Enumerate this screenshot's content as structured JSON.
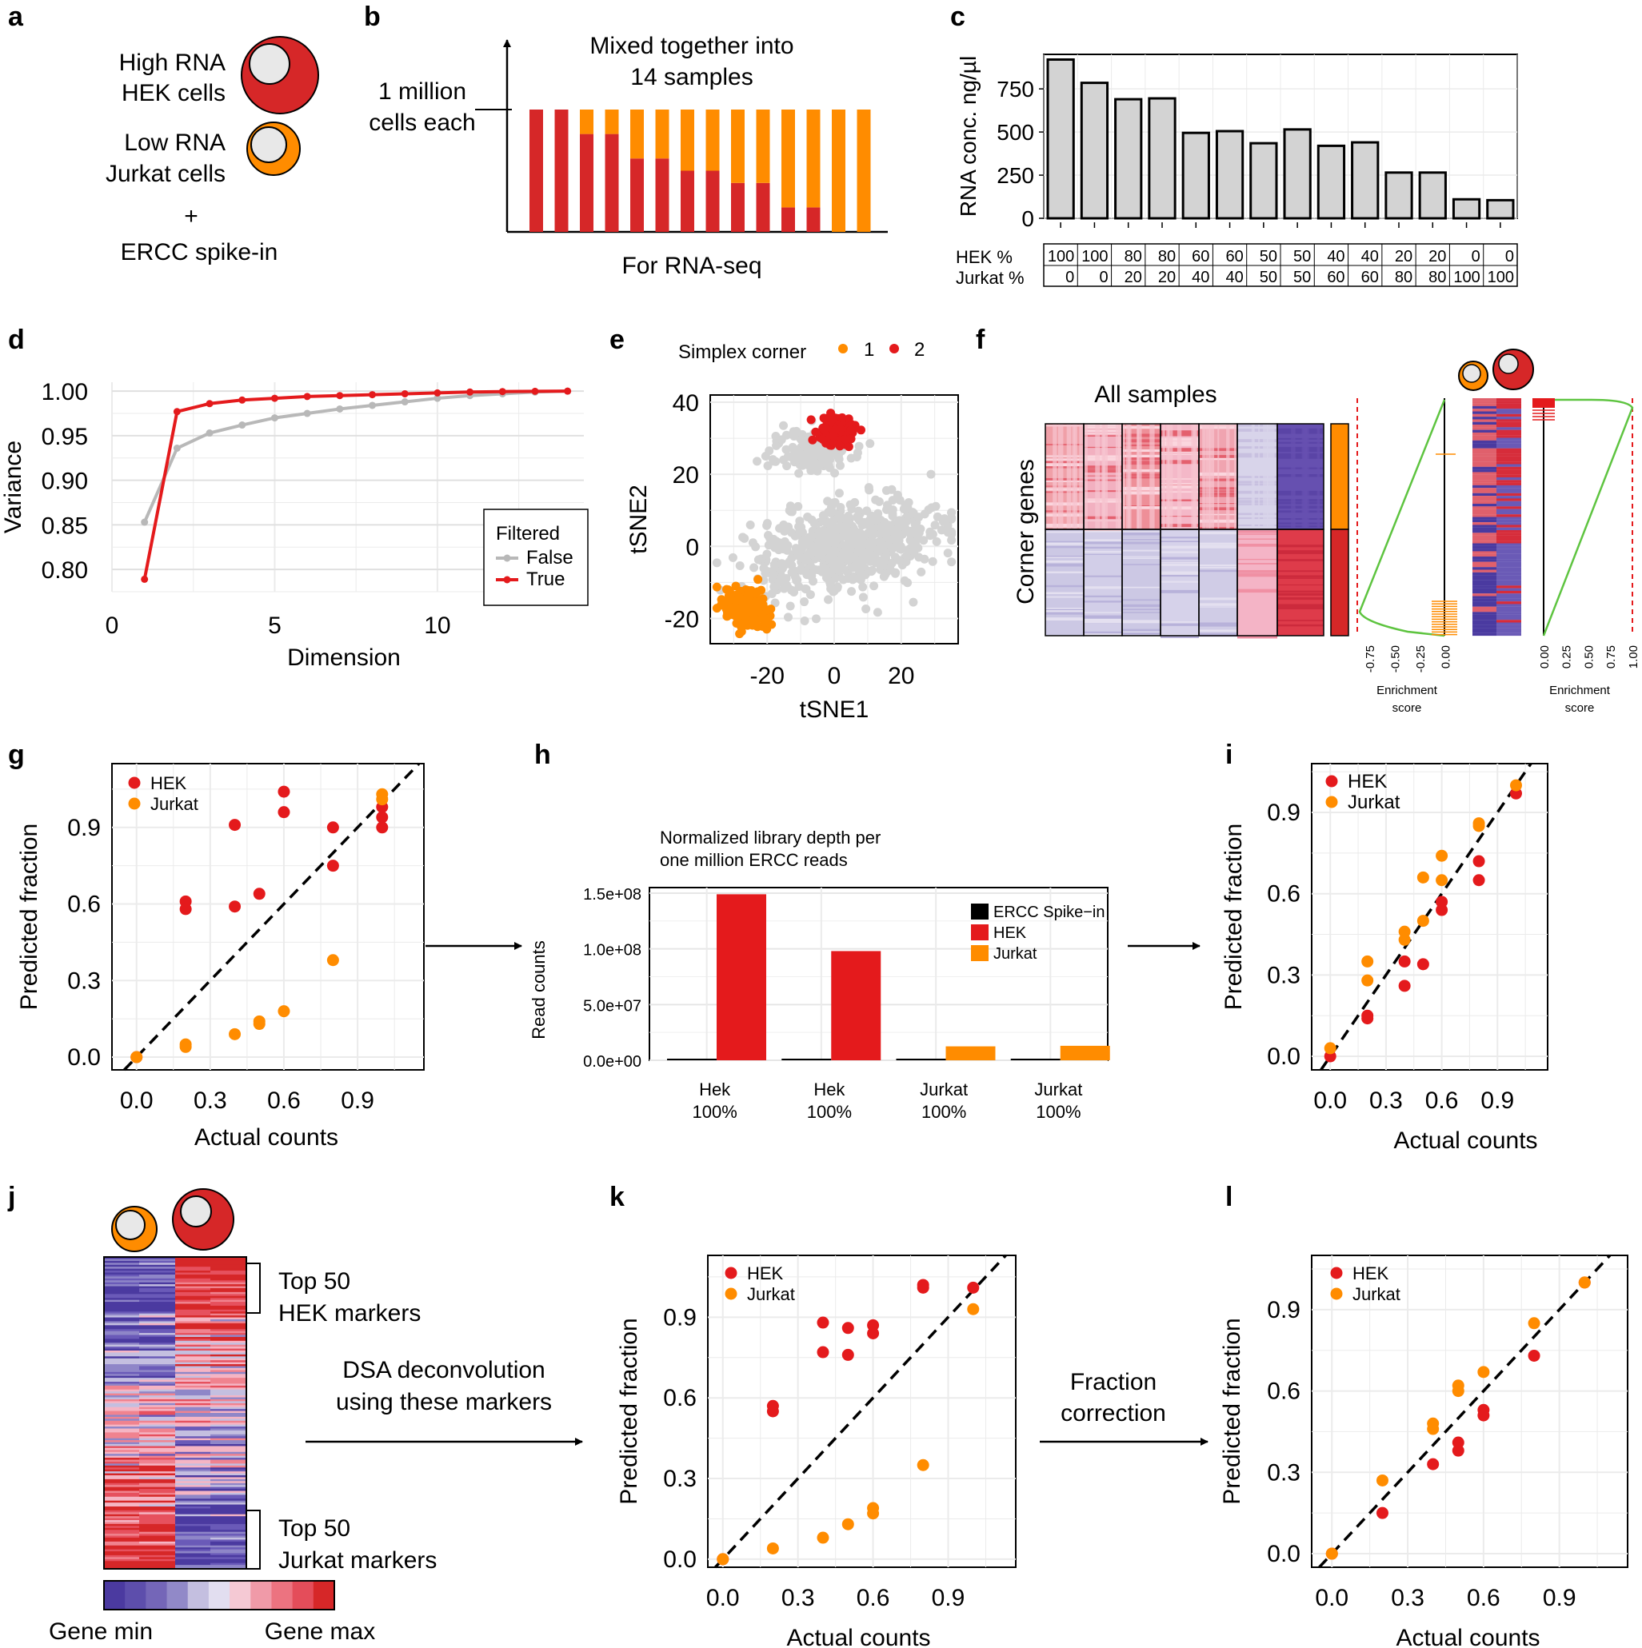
{
  "colors": {
    "hek": "#e41a1c",
    "hek_dark": "#d42224",
    "jurkat": "#ff8c00",
    "grey": "#b8b8b8",
    "light": "#d3d3d3",
    "green": "#5ec440"
  },
  "panels": [
    "a",
    "b",
    "c",
    "d",
    "e",
    "f",
    "g",
    "h",
    "i",
    "j",
    "k",
    "l"
  ],
  "panel_a": {
    "hek_label1": "High RNA",
    "hek_label2": "HEK cells",
    "jurkat_label1": "Low RNA",
    "jurkat_label2": "Jurkat cells",
    "plus": "+",
    "ercc": "ERCC spike-in"
  },
  "panel_b": {
    "title1": "Mixed together into",
    "title2": "14 samples",
    "cells1": "1 million",
    "cells2": "cells each",
    "footer": "For RNA-seq"
  },
  "panel_j": {
    "hek_markers1": "Top 50",
    "hek_markers2": "HEK markers",
    "jurkat_markers1": "Top 50",
    "jurkat_markers2": "Jurkat markers",
    "gene_min": "Gene min",
    "gene_max": "Gene max",
    "dsa1": "DSA deconvolution",
    "dsa2": "using these markers",
    "corr1": "Fraction",
    "corr2": "correction"
  },
  "panel_f": {
    "title": "All samples",
    "ylabel": "Corner genes",
    "es_label1": "Enrichment",
    "es_label2": "score",
    "left_ticks": [
      "-0.75",
      "-0.50",
      "-0.25",
      "0.00"
    ],
    "right_ticks": [
      "0.00",
      "0.25",
      "0.50",
      "0.75",
      "1.00"
    ]
  },
  "chart_data": [
    {
      "id": "c",
      "type": "bar",
      "ylabel": "RNA conc. ng/µl",
      "ylim": [
        0,
        950
      ],
      "yticks": [
        0,
        250,
        500,
        750
      ],
      "values": [
        920,
        785,
        690,
        695,
        495,
        505,
        435,
        515,
        420,
        440,
        265,
        265,
        110,
        105
      ],
      "table": {
        "row1_label": "HEK %",
        "row2_label": "Jurkat %",
        "hek": [
          "100",
          "100",
          "80",
          "80",
          "60",
          "60",
          "50",
          "50",
          "40",
          "40",
          "20",
          "20",
          "0",
          "0"
        ],
        "jurkat": [
          "0",
          "0",
          "20",
          "20",
          "40",
          "40",
          "50",
          "50",
          "60",
          "60",
          "80",
          "80",
          "100",
          "100"
        ]
      }
    },
    {
      "id": "d",
      "type": "line",
      "xlabel": "Dimension",
      "ylabel": "Variance",
      "xlim": [
        0,
        14.5
      ],
      "ylim": [
        0.775,
        1.01
      ],
      "xticks": [
        0,
        5,
        10
      ],
      "yticks": [
        "0.80",
        "0.85",
        "0.90",
        "0.95",
        "1.00"
      ],
      "legend_title": "Filtered",
      "series": [
        {
          "name": "False",
          "x": [
            1,
            2,
            3,
            4,
            5,
            6,
            7,
            8,
            9,
            10,
            11,
            12,
            13,
            14
          ],
          "y": [
            0.853,
            0.936,
            0.953,
            0.962,
            0.97,
            0.975,
            0.98,
            0.984,
            0.988,
            0.992,
            0.995,
            0.997,
            0.999,
            1.0
          ]
        },
        {
          "name": "True",
          "x": [
            1,
            2,
            3,
            4,
            5,
            6,
            7,
            8,
            9,
            10,
            11,
            12,
            13,
            14
          ],
          "y": [
            0.789,
            0.977,
            0.986,
            0.99,
            0.992,
            0.994,
            0.995,
            0.996,
            0.997,
            0.998,
            0.999,
            0.9995,
            0.9998,
            1.0
          ]
        }
      ]
    },
    {
      "id": "e",
      "type": "scatter",
      "xlabel": "tSNE1",
      "ylabel": "tSNE2",
      "xlim": [
        -37,
        37
      ],
      "ylim": [
        -27,
        42
      ],
      "xticks": [
        "-20",
        "0",
        "20"
      ],
      "yticks": [
        "-20",
        "0",
        "20",
        "40"
      ],
      "legend_title": "Simplex corner",
      "legend": [
        "1",
        "2"
      ],
      "clusters": [
        {
          "name": "grey_main",
          "cx": 3,
          "cy": 0,
          "sx": 14,
          "sy": 6,
          "n": 650
        },
        {
          "name": "grey_upper",
          "cx": -7,
          "cy": 26,
          "sx": 6,
          "sy": 3,
          "n": 130
        },
        {
          "name": "2",
          "cx": 0.5,
          "cy": 32,
          "sx": 2.6,
          "sy": 2.2,
          "n": 160
        },
        {
          "name": "1",
          "cx": -26,
          "cy": -17,
          "sx": 3.5,
          "sy": 2.5,
          "n": 180
        }
      ]
    },
    {
      "id": "g",
      "type": "scatter",
      "xlabel": "Actual counts",
      "ylabel": "Predicted fraction",
      "xlim": [
        -0.1,
        1.17
      ],
      "ylim": [
        -0.05,
        1.15
      ],
      "xticks": [
        "0.0",
        "0.3",
        "0.6",
        "0.9"
      ],
      "yticks": [
        "0.0",
        "0.3",
        "0.6",
        "0.9"
      ],
      "legend": [
        "HEK",
        "Jurkat"
      ],
      "series": [
        {
          "name": "HEK",
          "x": [
            0,
            0.2,
            0.2,
            0.4,
            0.4,
            0.5,
            0.6,
            0.6,
            0.8,
            0.8,
            1.0,
            1.0,
            1.0
          ],
          "y": [
            0.0,
            0.61,
            0.58,
            0.91,
            0.59,
            0.64,
            1.04,
            0.96,
            0.9,
            0.75,
            0.98,
            0.94,
            0.9
          ]
        },
        {
          "name": "Jurkat",
          "x": [
            0,
            0.2,
            0.2,
            0.4,
            0.5,
            0.5,
            0.6,
            0.8,
            1.0,
            1.0
          ],
          "y": [
            0.0,
            0.05,
            0.04,
            0.09,
            0.14,
            0.13,
            0.18,
            0.38,
            1.01,
            1.03
          ]
        }
      ]
    },
    {
      "id": "h",
      "type": "bar",
      "title1": "Normalized library depth per",
      "title2": "one million ERCC reads",
      "ylabel": "Read counts",
      "ylim": [
        0,
        155000000
      ],
      "yticks": [
        "0.0e+00",
        "5.0e+07",
        "1.0e+08",
        "1.5e+08"
      ],
      "ytick_values": [
        0,
        50000000,
        100000000,
        150000000
      ],
      "categories": [
        "Hek 100%",
        "Hek 100%",
        "Jurkat 100%",
        "Jurkat 100%"
      ],
      "cat_line1": [
        "Hek",
        "Hek",
        "Jurkat",
        "Jurkat"
      ],
      "cat_line2": [
        "100%",
        "100%",
        "100%",
        "100%"
      ],
      "series": [
        {
          "name": "ERCC Spike−in",
          "values": [
            1000000,
            1000000,
            1000000,
            1000000
          ]
        },
        {
          "name": "HEK",
          "values": [
            149000000,
            98000000,
            0,
            0
          ]
        },
        {
          "name": "Jurkat",
          "values": [
            0,
            0,
            12500000,
            13000000
          ]
        }
      ]
    },
    {
      "id": "i",
      "type": "scatter",
      "xlabel": "Actual counts",
      "ylabel": "Predicted fraction",
      "xlim": [
        -0.1,
        1.17
      ],
      "ylim": [
        -0.05,
        1.08
      ],
      "xticks": [
        "0.0",
        "0.3",
        "0.6",
        "0.9"
      ],
      "yticks": [
        "0.0",
        "0.3",
        "0.6",
        "0.9"
      ],
      "legend": [
        "HEK",
        "Jurkat"
      ],
      "series": [
        {
          "name": "HEK",
          "x": [
            0,
            0.2,
            0.2,
            0.4,
            0.4,
            0.5,
            0.6,
            0.6,
            0.8,
            0.8,
            1.0
          ],
          "y": [
            0.0,
            0.15,
            0.14,
            0.35,
            0.26,
            0.34,
            0.57,
            0.54,
            0.72,
            0.65,
            0.97
          ]
        },
        {
          "name": "Jurkat",
          "x": [
            0,
            0.2,
            0.2,
            0.4,
            0.4,
            0.5,
            0.5,
            0.6,
            0.6,
            0.8,
            0.8,
            1.0
          ],
          "y": [
            0.03,
            0.35,
            0.28,
            0.46,
            0.43,
            0.66,
            0.5,
            0.74,
            0.65,
            0.86,
            0.85,
            1.0
          ]
        }
      ]
    },
    {
      "id": "k",
      "type": "scatter",
      "xlabel": "Actual counts",
      "ylabel": "Predicted fraction",
      "xlim": [
        -0.06,
        1.17
      ],
      "ylim": [
        -0.03,
        1.13
      ],
      "xticks": [
        "0.0",
        "0.3",
        "0.6",
        "0.9"
      ],
      "yticks": [
        "0.0",
        "0.3",
        "0.6",
        "0.9"
      ],
      "legend": [
        "HEK",
        "Jurkat"
      ],
      "series": [
        {
          "name": "HEK",
          "x": [
            0,
            0.2,
            0.2,
            0.4,
            0.4,
            0.5,
            0.5,
            0.6,
            0.6,
            0.8,
            0.8,
            1.0
          ],
          "y": [
            0.0,
            0.57,
            0.55,
            0.88,
            0.77,
            0.86,
            0.76,
            0.87,
            0.84,
            1.02,
            1.01,
            1.01
          ]
        },
        {
          "name": "Jurkat",
          "x": [
            0,
            0.2,
            0.4,
            0.5,
            0.6,
            0.6,
            0.8,
            1.0
          ],
          "y": [
            0.0,
            0.04,
            0.08,
            0.13,
            0.19,
            0.17,
            0.35,
            0.93
          ]
        }
      ]
    },
    {
      "id": "l",
      "type": "scatter",
      "xlabel": "Actual counts",
      "ylabel": "Predicted fraction",
      "xlim": [
        -0.08,
        1.17
      ],
      "ylim": [
        -0.05,
        1.1
      ],
      "xticks": [
        "0.0",
        "0.3",
        "0.6",
        "0.9"
      ],
      "yticks": [
        "0.0",
        "0.3",
        "0.6",
        "0.9"
      ],
      "legend": [
        "HEK",
        "Jurkat"
      ],
      "series": [
        {
          "name": "HEK",
          "x": [
            0,
            0.2,
            0.4,
            0.5,
            0.5,
            0.6,
            0.6,
            0.8,
            1.0
          ],
          "y": [
            0.0,
            0.15,
            0.33,
            0.41,
            0.38,
            0.53,
            0.51,
            0.73,
            1.0
          ]
        },
        {
          "name": "Jurkat",
          "x": [
            0,
            0.2,
            0.4,
            0.4,
            0.5,
            0.5,
            0.6,
            0.8,
            1.0
          ],
          "y": [
            0.0,
            0.27,
            0.48,
            0.46,
            0.62,
            0.6,
            0.67,
            0.85,
            1.0
          ]
        }
      ]
    }
  ]
}
